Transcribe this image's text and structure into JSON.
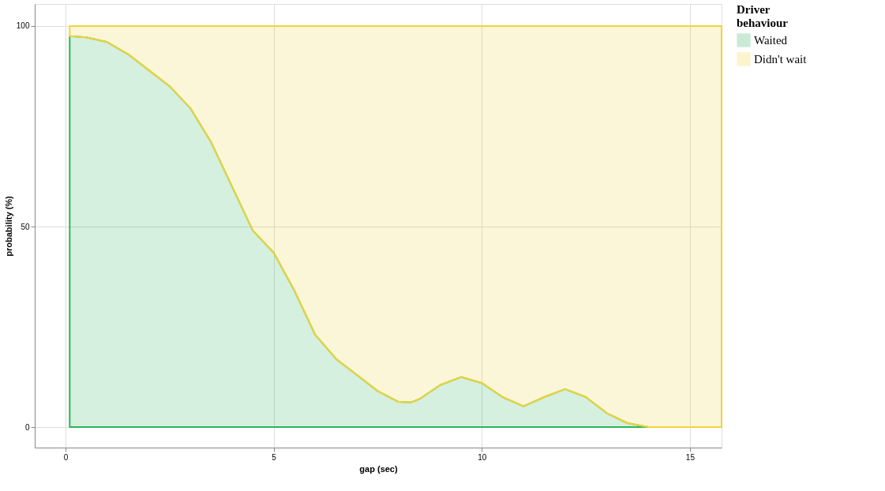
{
  "chart_data": {
    "type": "area",
    "stacked": true,
    "xlabel": "gap (sec)",
    "ylabel": "probability (%)",
    "legend_title": "Driver behaviour",
    "legend": "right",
    "grid": true,
    "x": [
      0.1,
      0.5,
      1,
      1.5,
      2,
      2.5,
      3,
      3.5,
      4,
      4.5,
      5,
      5.5,
      6,
      6.5,
      7,
      7.5,
      8,
      8.3,
      8.5,
      9,
      9.5,
      10,
      10.5,
      11,
      11.5,
      12,
      12.5,
      13,
      13.5,
      14,
      15.76
    ],
    "series": [
      {
        "name": "Waited",
        "color": "#2eb35a",
        "values": [
          97.5,
          97.2,
          96,
          93,
          89,
          85,
          79.5,
          71,
          60,
          49,
          43.5,
          34,
          23,
          17,
          13,
          9,
          6.3,
          6.2,
          7,
          10.5,
          12.5,
          11,
          7.5,
          5.2,
          7.5,
          9.5,
          7.5,
          3.5,
          1,
          0,
          0
        ]
      },
      {
        "name": "Didn't wait",
        "color": "#f0d43a",
        "values": [
          2.5,
          2.8,
          4,
          7,
          11,
          15,
          20.5,
          29,
          40,
          51,
          56.5,
          66,
          77,
          83,
          87,
          91,
          93.7,
          93.8,
          93,
          89.5,
          87.5,
          89,
          92.5,
          94.8,
          92.5,
          90.5,
          92.5,
          96.5,
          99,
          100,
          100
        ]
      }
    ],
    "xlim": [
      -0.74,
      15.76
    ],
    "xticks": [
      0,
      5,
      10,
      15
    ],
    "ylim": [
      -5.1,
      105.5
    ],
    "yticks": [
      0,
      50,
      100
    ]
  }
}
